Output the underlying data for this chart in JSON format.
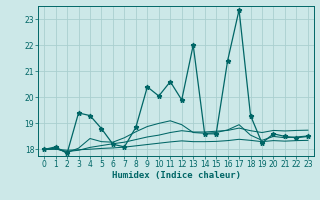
{
  "xlabel": "Humidex (Indice chaleur)",
  "background_color": "#cce8e8",
  "grid_color": "#aacfcf",
  "line_color": "#006666",
  "xlim": [
    -0.5,
    23.5
  ],
  "ylim": [
    17.75,
    23.5
  ],
  "yticks": [
    18,
    19,
    20,
    21,
    22,
    23
  ],
  "xticks": [
    0,
    1,
    2,
    3,
    4,
    5,
    6,
    7,
    8,
    9,
    10,
    11,
    12,
    13,
    14,
    15,
    16,
    17,
    18,
    19,
    20,
    21,
    22,
    23
  ],
  "series_main": [
    18.0,
    18.1,
    17.85,
    19.4,
    19.3,
    18.8,
    18.2,
    18.1,
    18.85,
    20.4,
    20.05,
    20.6,
    19.9,
    22.0,
    18.6,
    18.6,
    21.4,
    23.35,
    19.3,
    18.25,
    18.6,
    18.5,
    18.45,
    18.5
  ],
  "series_smooth1": [
    18.0,
    18.05,
    17.88,
    18.05,
    18.42,
    18.3,
    18.28,
    18.45,
    18.68,
    18.88,
    19.0,
    19.1,
    18.95,
    18.65,
    18.62,
    18.65,
    18.75,
    18.95,
    18.55,
    18.35,
    18.5,
    18.45,
    18.48,
    18.52
  ],
  "series_smooth2": [
    18.0,
    18.02,
    17.92,
    17.97,
    18.08,
    18.15,
    18.22,
    18.28,
    18.38,
    18.48,
    18.55,
    18.65,
    18.72,
    18.67,
    18.67,
    18.7,
    18.73,
    18.82,
    18.72,
    18.65,
    18.73,
    18.71,
    18.73,
    18.74
  ],
  "series_smooth3": [
    18.0,
    18.01,
    17.97,
    17.99,
    18.01,
    18.04,
    18.06,
    18.09,
    18.14,
    18.19,
    18.24,
    18.29,
    18.33,
    18.3,
    18.3,
    18.31,
    18.34,
    18.39,
    18.35,
    18.3,
    18.34,
    18.32,
    18.34,
    18.35
  ],
  "marker": "*",
  "markersize": 3.5,
  "linewidth_main": 0.9,
  "linewidth_smooth": 0.75
}
